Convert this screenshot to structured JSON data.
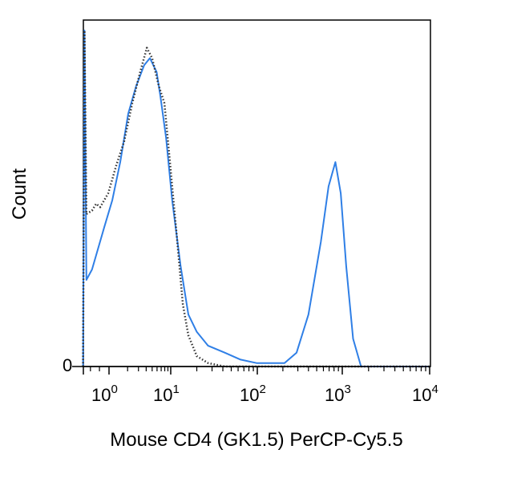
{
  "chart_data": {
    "type": "line",
    "title": "",
    "xlabel": "Mouse CD4 (GK1.5) PerCP-Cy5.5",
    "ylabel": "Count",
    "x_scale": "log",
    "xlim": [
      0.38,
      10000
    ],
    "ylim": [
      0,
      100
    ],
    "y_unit": "percent of max",
    "x_ticks": [
      {
        "value": 1,
        "base": "10",
        "exp": "0"
      },
      {
        "value": 10,
        "base": "10",
        "exp": "1"
      },
      {
        "value": 100,
        "base": "10",
        "exp": "2"
      },
      {
        "value": 1000,
        "base": "10",
        "exp": "3"
      },
      {
        "value": 10000,
        "base": "10",
        "exp": "4"
      }
    ],
    "y_ticks": [
      {
        "value": 0,
        "label": "0"
      }
    ],
    "grid": false,
    "series": [
      {
        "style": "solid",
        "color": "#2f7fe6",
        "x": [
          0.38,
          0.4,
          0.43,
          0.53,
          0.83,
          1.13,
          1.52,
          2.05,
          2.76,
          3.72,
          4.6,
          5.9,
          6.8,
          8.4,
          10.4,
          13,
          16,
          20,
          27,
          42,
          64,
          98,
          209,
          290,
          400,
          560,
          690,
          830,
          960,
          1110,
          1330,
          1640,
          10000
        ],
        "y": [
          0,
          97,
          25,
          28,
          40,
          48,
          59,
          73,
          81,
          87,
          89,
          85,
          78,
          66,
          48,
          29,
          15,
          10,
          6,
          4,
          2,
          1,
          1,
          4,
          15,
          36,
          52,
          59,
          50,
          29,
          8,
          0,
          0
        ]
      },
      {
        "style": "dotted",
        "color": "#333333",
        "x": [
          0.38,
          0.4,
          0.43,
          0.53,
          0.62,
          0.72,
          0.97,
          1.31,
          1.76,
          2.38,
          3.2,
          4.1,
          5.0,
          6.4,
          7.9,
          9.7,
          11.6,
          13.8,
          16,
          20,
          27,
          42,
          10000
        ],
        "y": [
          0,
          97,
          44,
          45,
          47,
          46,
          50,
          58,
          65,
          76,
          85,
          92,
          89,
          81,
          76,
          59,
          39,
          18,
          9,
          3,
          1,
          0,
          0
        ]
      }
    ]
  }
}
